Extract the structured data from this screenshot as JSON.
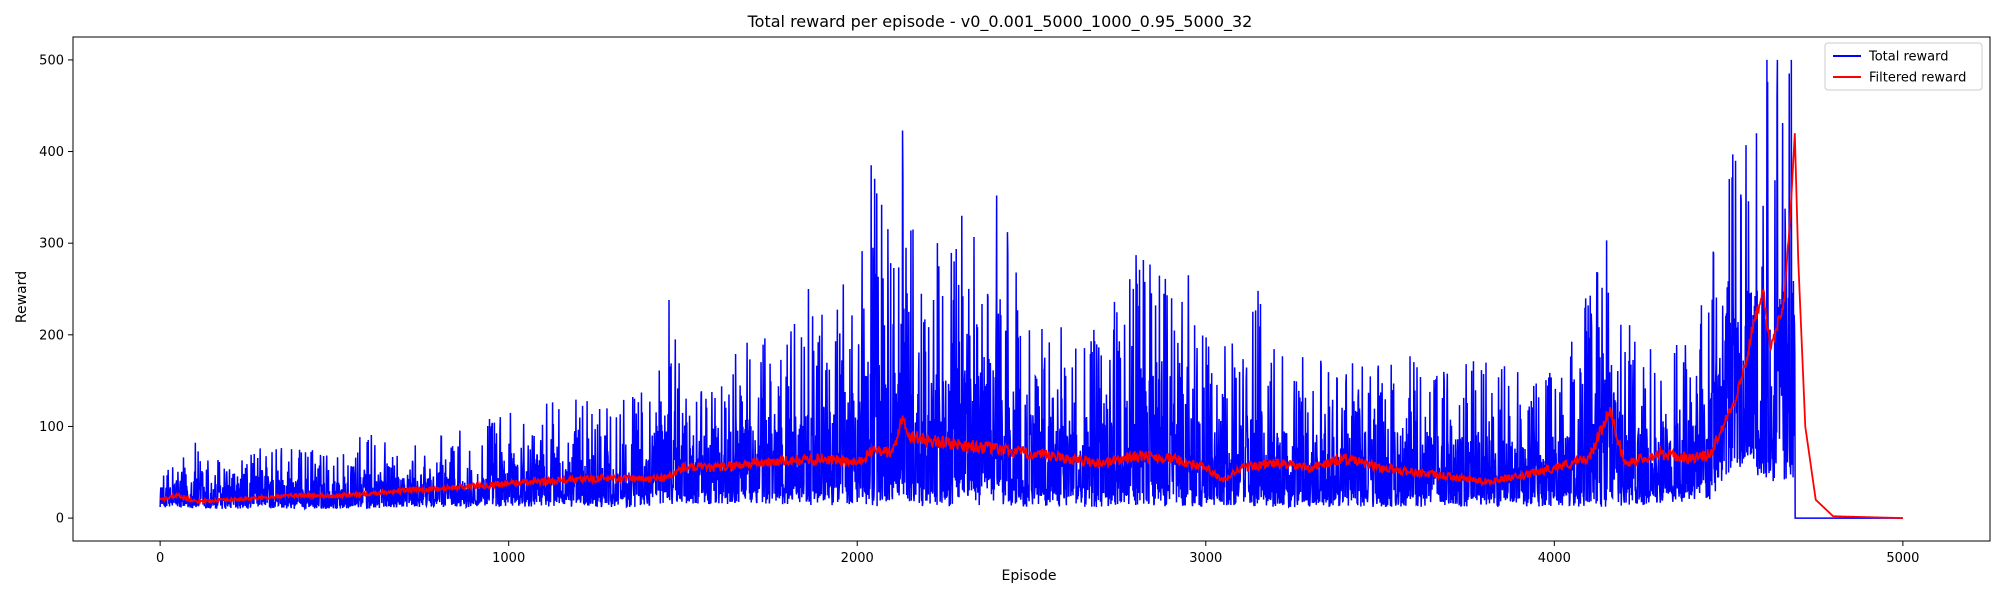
{
  "chart_data": {
    "type": "line",
    "title": "Total reward per episode - v0_0.001_5000_1000_0.95_5000_32",
    "xlabel": "Episode",
    "ylabel": "Reward",
    "xlim": [
      -250,
      5250
    ],
    "ylim": [
      -25,
      525
    ],
    "x_ticks": [
      0,
      1000,
      2000,
      3000,
      4000,
      5000
    ],
    "y_ticks": [
      0,
      100,
      200,
      300,
      400,
      500
    ],
    "grid": false,
    "legend_position": "top-right",
    "series": [
      {
        "name": "Total reward",
        "color": "#0000ff",
        "style": "noisy-envelope",
        "x": [
          0,
          100,
          200,
          300,
          400,
          500,
          600,
          700,
          800,
          900,
          1000,
          1100,
          1200,
          1300,
          1400,
          1460,
          1500,
          1600,
          1700,
          1800,
          1900,
          2000,
          2050,
          2100,
          2130,
          2200,
          2300,
          2400,
          2500,
          2600,
          2700,
          2800,
          2900,
          3000,
          3100,
          3150,
          3200,
          3300,
          3400,
          3500,
          3600,
          3700,
          3800,
          3900,
          4000,
          4100,
          4150,
          4200,
          4300,
          4400,
          4450,
          4500,
          4550,
          4600,
          4650,
          4690,
          4700,
          5000
        ],
        "low": [
          12,
          10,
          10,
          10,
          10,
          10,
          10,
          12,
          12,
          12,
          12,
          12,
          12,
          12,
          12,
          14,
          15,
          15,
          14,
          14,
          14,
          12,
          12,
          15,
          15,
          12,
          12,
          12,
          12,
          12,
          12,
          12,
          12,
          12,
          12,
          12,
          12,
          12,
          12,
          12,
          12,
          12,
          12,
          12,
          12,
          12,
          12,
          12,
          15,
          15,
          20,
          40,
          60,
          40,
          40,
          40,
          0,
          0
        ],
        "high": [
          50,
          85,
          60,
          85,
          75,
          75,
          95,
          75,
          90,
          100,
          120,
          130,
          130,
          130,
          140,
          238,
          160,
          150,
          215,
          215,
          230,
          255,
          385,
          310,
          423,
          250,
          330,
          350,
          230,
          205,
          220,
          287,
          265,
          210,
          190,
          248,
          180,
          185,
          180,
          175,
          180,
          165,
          175,
          160,
          160,
          250,
          303,
          215,
          205,
          200,
          290,
          390,
          420,
          500,
          500,
          500,
          0,
          0
        ],
        "peaks": [
          [
            1460,
            238
          ],
          [
            1860,
            250
          ],
          [
            1960,
            255
          ],
          [
            2040,
            385
          ],
          [
            2130,
            423
          ],
          [
            2140,
            295
          ],
          [
            2160,
            315
          ],
          [
            2230,
            300
          ],
          [
            2300,
            330
          ],
          [
            2400,
            352
          ],
          [
            2800,
            287
          ],
          [
            2950,
            265
          ],
          [
            3150,
            248
          ],
          [
            4150,
            303
          ],
          [
            4520,
            390
          ],
          [
            4580,
            420
          ],
          [
            4610,
            500
          ],
          [
            4640,
            500
          ],
          [
            4680,
            500
          ]
        ]
      },
      {
        "name": "Filtered reward",
        "color": "#ff0000",
        "style": "line",
        "x": [
          0,
          50,
          100,
          200,
          300,
          400,
          500,
          600,
          700,
          800,
          900,
          1000,
          1100,
          1200,
          1300,
          1400,
          1460,
          1500,
          1600,
          1700,
          1800,
          1900,
          2000,
          2050,
          2100,
          2130,
          2150,
          2200,
          2300,
          2400,
          2500,
          2600,
          2700,
          2800,
          2900,
          3000,
          3050,
          3100,
          3200,
          3300,
          3400,
          3500,
          3600,
          3700,
          3800,
          3900,
          4000,
          4100,
          4150,
          4160,
          4200,
          4300,
          4400,
          4450,
          4480,
          4520,
          4550,
          4570,
          4600,
          4620,
          4640,
          4660,
          4680,
          4690,
          4700,
          4720,
          4750,
          4800,
          5000
        ],
        "y": [
          20,
          25,
          18,
          20,
          22,
          25,
          24,
          27,
          30,
          32,
          35,
          38,
          40,
          42,
          44,
          42,
          45,
          55,
          55,
          60,
          62,
          65,
          60,
          75,
          70,
          110,
          90,
          85,
          80,
          75,
          70,
          65,
          60,
          68,
          65,
          55,
          40,
          55,
          60,
          55,
          65,
          55,
          50,
          45,
          40,
          45,
          55,
          65,
          110,
          120,
          60,
          70,
          65,
          70,
          100,
          130,
          170,
          210,
          250,
          180,
          210,
          240,
          350,
          420,
          280,
          100,
          20,
          2,
          0
        ]
      }
    ]
  }
}
